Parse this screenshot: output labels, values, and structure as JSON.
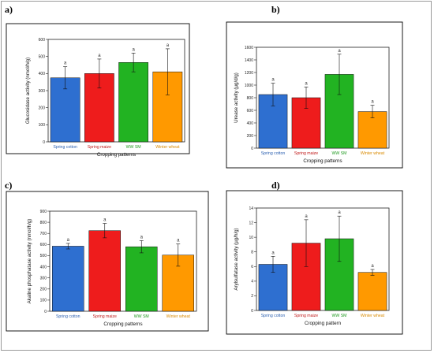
{
  "panels": [
    {
      "letter": "a)",
      "xlabel": "Cropping patterns",
      "ylabel": "Glucosidase activity (nmol/h/g)",
      "ylim": [
        0,
        600
      ],
      "yticks": [
        0,
        100,
        200,
        300,
        400,
        500,
        600
      ],
      "categories": [
        "Spring cotton",
        "Spring maize",
        "WW SM",
        "Winter wheat"
      ],
      "values": [
        375,
        400,
        465,
        410
      ],
      "errors": [
        65,
        85,
        55,
        135
      ],
      "labels": [
        "a",
        "a",
        "a",
        "a"
      ]
    },
    {
      "letter": "b)",
      "xlabel": "Cropping patterns",
      "ylabel": "Urease activity (µg/d/g)",
      "ylim": [
        0,
        1600
      ],
      "yticks": [
        0,
        200,
        400,
        600,
        800,
        1000,
        1200,
        1400,
        1600
      ],
      "categories": [
        "Spring cotton",
        "Spring maize",
        "WW SM",
        "Winter wheat"
      ],
      "values": [
        850,
        800,
        1170,
        580
      ],
      "errors": [
        180,
        170,
        320,
        100
      ],
      "labels": [
        "a",
        "a",
        "a",
        "a"
      ]
    },
    {
      "letter": "c)",
      "xlabel": "Cropping patterns",
      "ylabel": "Akaline phosphatase activity (nmol/h/g)",
      "ylim": [
        0,
        900
      ],
      "yticks": [
        0,
        100,
        200,
        300,
        400,
        500,
        600,
        700,
        800,
        900
      ],
      "categories": [
        "Spring cotton",
        "Spring maize",
        "WW SM",
        "Winter wheat"
      ],
      "values": [
        585,
        725,
        580,
        505
      ],
      "errors": [
        25,
        65,
        55,
        100
      ],
      "labels": [
        "a",
        "a",
        "a",
        "a"
      ]
    },
    {
      "letter": "d)",
      "xlabel": "Cropping pattern",
      "ylabel": "Arylsulfatase activity (µg/h/g)",
      "ylim": [
        0,
        14
      ],
      "yticks": [
        0,
        2,
        4,
        6,
        8,
        10,
        12,
        14
      ],
      "categories": [
        "Spring cotton",
        "Spring maize",
        "WW SM",
        "Winter wheat"
      ],
      "values": [
        6.3,
        9.2,
        9.8,
        5.2
      ],
      "errors": [
        1.1,
        3.2,
        3.1,
        0.4
      ],
      "labels": [
        "a",
        "a",
        "a",
        "a"
      ]
    }
  ],
  "colors": {
    "bars": [
      "#2e6fd0",
      "#ee1c1c",
      "#22b322",
      "#ff9900"
    ],
    "categories": [
      "#2a5fb0",
      "#c01818",
      "#1f9a1f",
      "#d98a00"
    ],
    "axis": "#222222"
  },
  "chart_data": [
    {
      "type": "bar",
      "xlabel": "Cropping patterns",
      "ylabel": "Glucosidase activity (nmol/h/g)",
      "ylim": [
        0,
        600
      ],
      "categories": [
        "Spring cotton",
        "Spring maize",
        "WW SM",
        "Winter wheat"
      ],
      "values": [
        375,
        400,
        465,
        410
      ],
      "errors": [
        65,
        85,
        55,
        135
      ],
      "annotations": [
        "a",
        "a",
        "a",
        "a"
      ]
    },
    {
      "type": "bar",
      "xlabel": "Cropping patterns",
      "ylabel": "Urease activity (µg/d/g)",
      "ylim": [
        0,
        1600
      ],
      "categories": [
        "Spring cotton",
        "Spring maize",
        "WW SM",
        "Winter wheat"
      ],
      "values": [
        850,
        800,
        1170,
        580
      ],
      "errors": [
        180,
        170,
        320,
        100
      ],
      "annotations": [
        "a",
        "a",
        "a",
        "a"
      ]
    },
    {
      "type": "bar",
      "xlabel": "Cropping patterns",
      "ylabel": "Akaline phosphatase activity (nmol/h/g)",
      "ylim": [
        0,
        900
      ],
      "categories": [
        "Spring cotton",
        "Spring maize",
        "WW SM",
        "Winter wheat"
      ],
      "values": [
        585,
        725,
        580,
        505
      ],
      "errors": [
        25,
        65,
        55,
        100
      ],
      "annotations": [
        "a",
        "a",
        "a",
        "a"
      ]
    },
    {
      "type": "bar",
      "xlabel": "Cropping pattern",
      "ylabel": "Arylsulfatase activity (µg/h/g)",
      "ylim": [
        0,
        14
      ],
      "categories": [
        "Spring cotton",
        "Spring maize",
        "WW SM",
        "Winter wheat"
      ],
      "values": [
        6.3,
        9.2,
        9.8,
        5.2
      ],
      "errors": [
        1.1,
        3.2,
        3.1,
        0.4
      ],
      "annotations": [
        "a",
        "a",
        "a",
        "a"
      ]
    }
  ]
}
